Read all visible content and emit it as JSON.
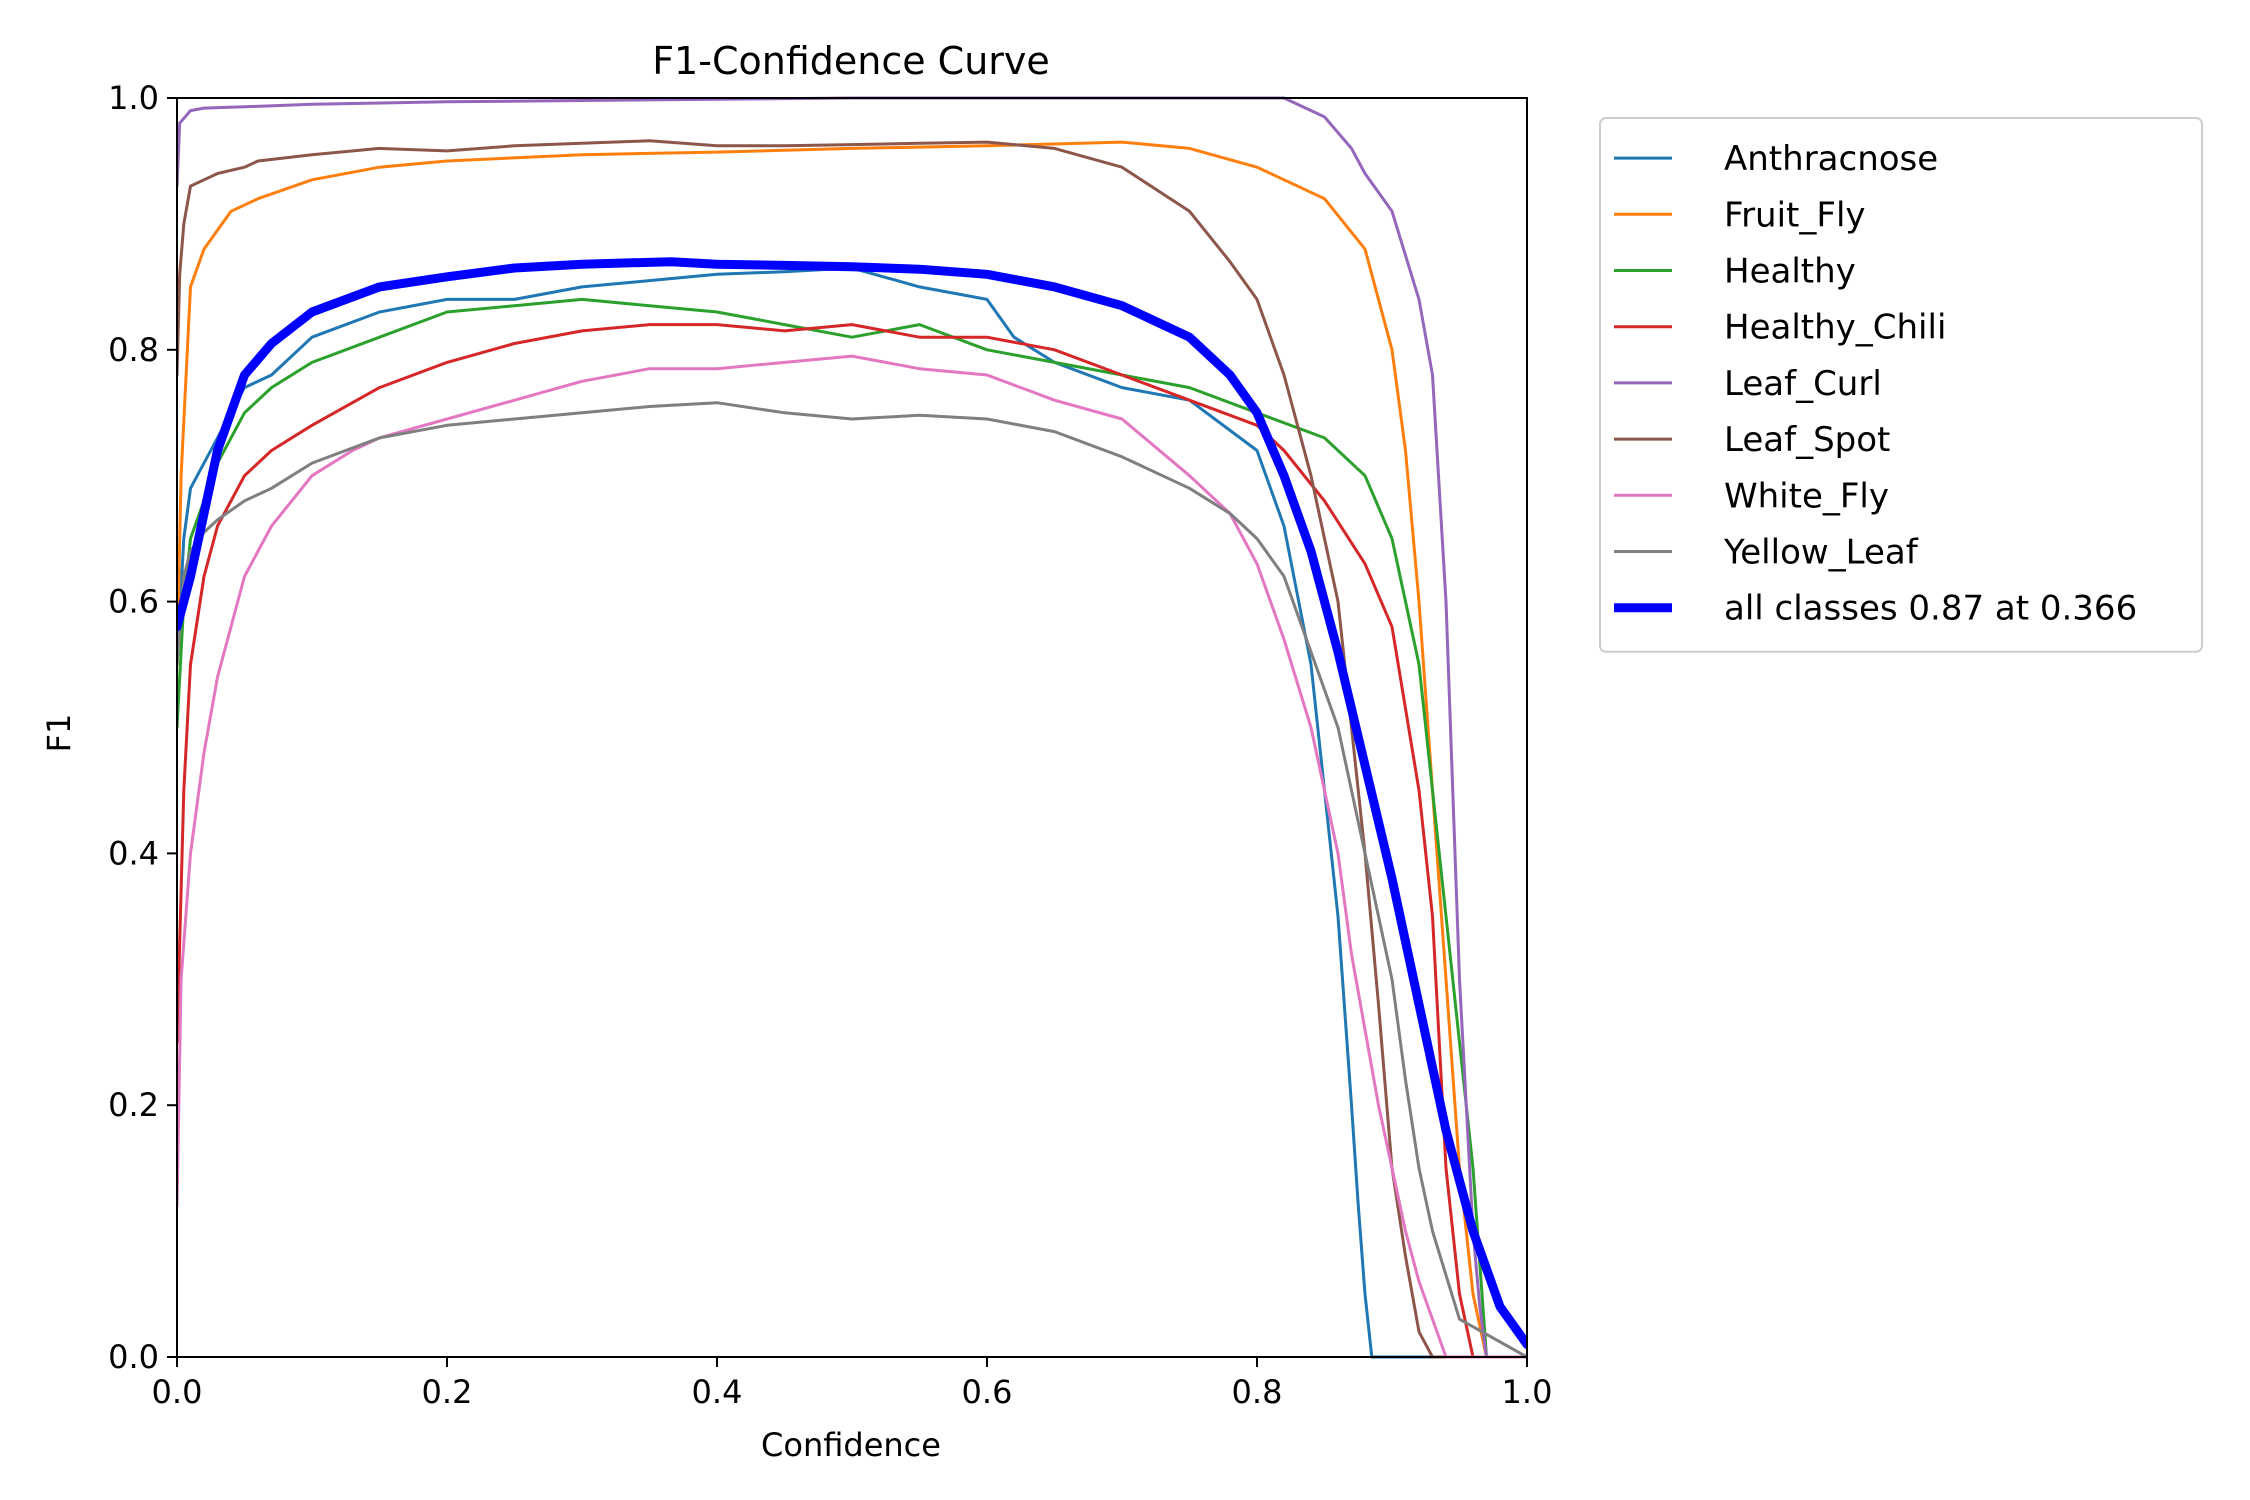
{
  "chart_data": {
    "type": "line",
    "title": "F1-Confidence Curve",
    "xlabel": "Confidence",
    "ylabel": "F1",
    "xlim": [
      0,
      1
    ],
    "ylim": [
      0,
      1
    ],
    "xticks": [
      "0.0",
      "0.2",
      "0.4",
      "0.6",
      "0.8",
      "1.0"
    ],
    "yticks": [
      "0.0",
      "0.2",
      "0.4",
      "0.6",
      "0.8",
      "1.0"
    ],
    "grid": false,
    "legend_position": "outside-right-top",
    "series": [
      {
        "name": "Anthracnose",
        "color": "#1f77b4",
        "x": [
          0.0,
          0.005,
          0.01,
          0.02,
          0.03,
          0.05,
          0.07,
          0.1,
          0.15,
          0.2,
          0.25,
          0.3,
          0.35,
          0.4,
          0.45,
          0.5,
          0.55,
          0.6,
          0.62,
          0.65,
          0.7,
          0.75,
          0.8,
          0.82,
          0.84,
          0.86,
          0.87,
          0.875,
          0.88,
          0.885,
          0.89,
          1.0
        ],
        "y": [
          0.55,
          0.65,
          0.69,
          0.71,
          0.73,
          0.77,
          0.78,
          0.81,
          0.83,
          0.84,
          0.84,
          0.85,
          0.855,
          0.86,
          0.862,
          0.865,
          0.85,
          0.84,
          0.81,
          0.79,
          0.77,
          0.76,
          0.72,
          0.66,
          0.55,
          0.35,
          0.2,
          0.12,
          0.05,
          0.0,
          0.0,
          0.0
        ]
      },
      {
        "name": "Fruit_Fly",
        "color": "#ff7f0e",
        "x": [
          0.0,
          0.003,
          0.01,
          0.02,
          0.04,
          0.06,
          0.1,
          0.15,
          0.2,
          0.3,
          0.4,
          0.5,
          0.6,
          0.7,
          0.75,
          0.8,
          0.85,
          0.88,
          0.9,
          0.91,
          0.92,
          0.93,
          0.94,
          0.95,
          0.96,
          0.97,
          0.975,
          1.0
        ],
        "y": [
          0.55,
          0.7,
          0.85,
          0.88,
          0.91,
          0.92,
          0.935,
          0.945,
          0.95,
          0.955,
          0.957,
          0.96,
          0.962,
          0.965,
          0.96,
          0.945,
          0.92,
          0.88,
          0.8,
          0.72,
          0.6,
          0.45,
          0.3,
          0.15,
          0.05,
          0.0,
          0.0,
          0.0
        ]
      },
      {
        "name": "Healthy",
        "color": "#2ca02c",
        "x": [
          0.0,
          0.005,
          0.01,
          0.02,
          0.03,
          0.05,
          0.07,
          0.1,
          0.15,
          0.2,
          0.25,
          0.3,
          0.35,
          0.4,
          0.45,
          0.5,
          0.55,
          0.6,
          0.65,
          0.7,
          0.75,
          0.8,
          0.85,
          0.88,
          0.9,
          0.91,
          0.92,
          0.93,
          0.94,
          0.95,
          0.96,
          0.97,
          1.0
        ],
        "y": [
          0.5,
          0.6,
          0.65,
          0.68,
          0.71,
          0.75,
          0.77,
          0.79,
          0.81,
          0.83,
          0.835,
          0.84,
          0.835,
          0.83,
          0.82,
          0.81,
          0.82,
          0.8,
          0.79,
          0.78,
          0.77,
          0.75,
          0.73,
          0.7,
          0.65,
          0.6,
          0.55,
          0.45,
          0.35,
          0.25,
          0.15,
          0.0,
          0.0
        ]
      },
      {
        "name": "Healthy_Chili",
        "color": "#d62728",
        "x": [
          0.0,
          0.005,
          0.01,
          0.02,
          0.03,
          0.05,
          0.07,
          0.1,
          0.15,
          0.2,
          0.25,
          0.3,
          0.35,
          0.4,
          0.45,
          0.5,
          0.55,
          0.6,
          0.65,
          0.7,
          0.75,
          0.8,
          0.82,
          0.85,
          0.88,
          0.9,
          0.92,
          0.93,
          0.94,
          0.95,
          0.96,
          1.0
        ],
        "y": [
          0.25,
          0.45,
          0.55,
          0.62,
          0.66,
          0.7,
          0.72,
          0.74,
          0.77,
          0.79,
          0.805,
          0.815,
          0.82,
          0.82,
          0.815,
          0.82,
          0.81,
          0.81,
          0.8,
          0.78,
          0.76,
          0.74,
          0.72,
          0.68,
          0.63,
          0.58,
          0.45,
          0.35,
          0.15,
          0.05,
          0.0,
          0.0
        ]
      },
      {
        "name": "Leaf_Curl",
        "color": "#9467bd",
        "x": [
          0.0,
          0.002,
          0.01,
          0.02,
          0.05,
          0.1,
          0.2,
          0.3,
          0.4,
          0.5,
          0.6,
          0.7,
          0.75,
          0.8,
          0.82,
          0.85,
          0.87,
          0.88,
          0.9,
          0.92,
          0.93,
          0.94,
          0.95,
          0.96,
          0.965,
          0.97,
          0.975,
          1.0
        ],
        "y": [
          0.93,
          0.98,
          0.99,
          0.992,
          0.993,
          0.995,
          0.997,
          0.998,
          0.999,
          1.0,
          1.0,
          1.0,
          1.0,
          1.0,
          1.0,
          0.985,
          0.96,
          0.94,
          0.91,
          0.84,
          0.78,
          0.6,
          0.3,
          0.1,
          0.04,
          0.0,
          0.0,
          0.0
        ]
      },
      {
        "name": "Leaf_Spot",
        "color": "#8c564b",
        "x": [
          0.0,
          0.002,
          0.005,
          0.01,
          0.02,
          0.03,
          0.05,
          0.06,
          0.1,
          0.15,
          0.2,
          0.25,
          0.3,
          0.35,
          0.4,
          0.45,
          0.5,
          0.55,
          0.6,
          0.65,
          0.7,
          0.75,
          0.78,
          0.8,
          0.82,
          0.84,
          0.86,
          0.87,
          0.88,
          0.89,
          0.9,
          0.91,
          0.92,
          0.93,
          1.0
        ],
        "y": [
          0.78,
          0.86,
          0.9,
          0.93,
          0.935,
          0.94,
          0.945,
          0.95,
          0.955,
          0.96,
          0.958,
          0.962,
          0.964,
          0.966,
          0.962,
          0.962,
          0.963,
          0.964,
          0.965,
          0.96,
          0.945,
          0.91,
          0.87,
          0.84,
          0.78,
          0.7,
          0.6,
          0.5,
          0.4,
          0.28,
          0.15,
          0.08,
          0.02,
          0.0,
          0.0
        ]
      },
      {
        "name": "White_Fly",
        "color": "#e377c2",
        "x": [
          0.0,
          0.003,
          0.01,
          0.02,
          0.03,
          0.05,
          0.07,
          0.1,
          0.13,
          0.15,
          0.2,
          0.25,
          0.3,
          0.35,
          0.4,
          0.45,
          0.5,
          0.55,
          0.6,
          0.65,
          0.7,
          0.75,
          0.78,
          0.8,
          0.82,
          0.84,
          0.86,
          0.87,
          0.88,
          0.89,
          0.9,
          0.91,
          0.92,
          0.93,
          0.94,
          1.0
        ],
        "y": [
          0.12,
          0.3,
          0.4,
          0.48,
          0.54,
          0.62,
          0.66,
          0.7,
          0.72,
          0.73,
          0.745,
          0.76,
          0.775,
          0.785,
          0.785,
          0.79,
          0.795,
          0.785,
          0.78,
          0.76,
          0.745,
          0.7,
          0.67,
          0.63,
          0.57,
          0.5,
          0.4,
          0.32,
          0.26,
          0.2,
          0.15,
          0.1,
          0.06,
          0.03,
          0.0,
          0.0
        ]
      },
      {
        "name": "Yellow_Leaf",
        "color": "#7f7f7f",
        "x": [
          0.0,
          0.005,
          0.01,
          0.02,
          0.03,
          0.05,
          0.07,
          0.1,
          0.15,
          0.2,
          0.25,
          0.3,
          0.35,
          0.4,
          0.45,
          0.5,
          0.55,
          0.6,
          0.65,
          0.7,
          0.75,
          0.78,
          0.8,
          0.82,
          0.84,
          0.86,
          0.87,
          0.88,
          0.9,
          0.91,
          0.92,
          0.93,
          0.95,
          1.0
        ],
        "y": [
          0.55,
          0.62,
          0.64,
          0.655,
          0.665,
          0.68,
          0.69,
          0.71,
          0.73,
          0.74,
          0.745,
          0.75,
          0.755,
          0.758,
          0.75,
          0.745,
          0.748,
          0.745,
          0.735,
          0.715,
          0.69,
          0.67,
          0.65,
          0.62,
          0.56,
          0.5,
          0.45,
          0.4,
          0.3,
          0.22,
          0.15,
          0.1,
          0.03,
          0.0
        ]
      },
      {
        "name": "all classes 0.87 at 0.366",
        "color": "#0000ff",
        "x": [
          0.0,
          0.01,
          0.02,
          0.03,
          0.05,
          0.07,
          0.1,
          0.15,
          0.2,
          0.25,
          0.3,
          0.366,
          0.4,
          0.45,
          0.5,
          0.55,
          0.6,
          0.65,
          0.7,
          0.75,
          0.78,
          0.8,
          0.82,
          0.84,
          0.86,
          0.88,
          0.9,
          0.92,
          0.94,
          0.96,
          0.98,
          1.0
        ],
        "y": [
          0.58,
          0.62,
          0.67,
          0.72,
          0.78,
          0.805,
          0.83,
          0.85,
          0.858,
          0.865,
          0.868,
          0.87,
          0.868,
          0.867,
          0.866,
          0.864,
          0.86,
          0.85,
          0.835,
          0.81,
          0.78,
          0.75,
          0.7,
          0.64,
          0.56,
          0.47,
          0.38,
          0.28,
          0.18,
          0.1,
          0.04,
          0.01
        ]
      }
    ]
  }
}
